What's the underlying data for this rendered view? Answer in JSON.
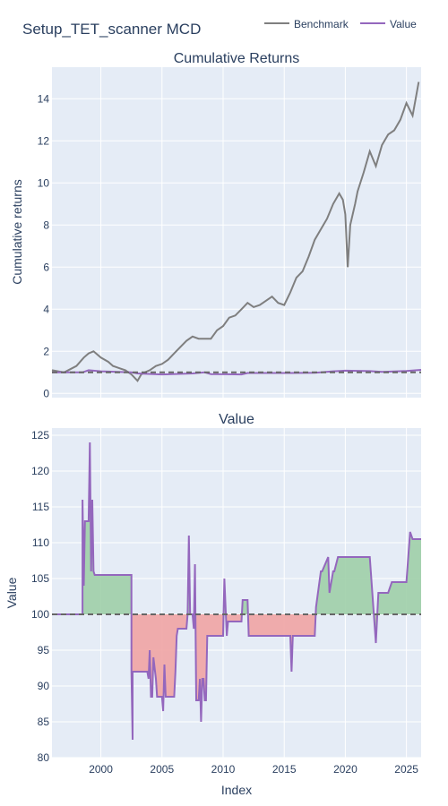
{
  "figure": {
    "title": "Setup_TET_scanner MCD",
    "legend": [
      {
        "name": "Benchmark",
        "color": "#7f7f7f"
      },
      {
        "name": "Value",
        "color": "#9467bd"
      }
    ],
    "colors": {
      "plot_bg": "#e5ecf6",
      "grid": "#ffffff",
      "text": "#2a3f5f",
      "fill_above": "#9ecfa8",
      "fill_below": "#f0a4a4"
    }
  },
  "chart_data": [
    {
      "type": "line",
      "title": "Cumulative Returns",
      "xlabel": "",
      "ylabel": "Cumulative returns",
      "xlim": [
        1996.0,
        2026.2
      ],
      "ylim": [
        -0.2,
        15.5
      ],
      "yticks": [
        0,
        2,
        4,
        6,
        8,
        10,
        12,
        14
      ],
      "grid": true,
      "reference_line": 1,
      "series": [
        {
          "name": "Benchmark",
          "color": "#7f7f7f",
          "x": [
            1996.0,
            1997.0,
            1998.0,
            1998.6,
            1999.0,
            1999.4,
            2000.0,
            2000.6,
            2001.0,
            2001.5,
            2002.0,
            2002.5,
            2003.0,
            2003.3,
            2003.6,
            2004.0,
            2004.5,
            2005.0,
            2005.5,
            2006.0,
            2006.5,
            2007.0,
            2007.5,
            2008.0,
            2008.5,
            2009.0,
            2009.5,
            2010.0,
            2010.5,
            2011.0,
            2011.5,
            2012.0,
            2012.5,
            2013.0,
            2013.5,
            2014.0,
            2014.5,
            2015.0,
            2015.5,
            2016.0,
            2016.5,
            2017.0,
            2017.5,
            2018.0,
            2018.5,
            2019.0,
            2019.5,
            2019.8,
            2020.0,
            2020.2,
            2020.4,
            2020.8,
            2021.0,
            2021.5,
            2022.0,
            2022.5,
            2023.0,
            2023.5,
            2024.0,
            2024.5,
            2025.0,
            2025.5,
            2026.0
          ],
          "values": [
            1.1,
            1.0,
            1.3,
            1.7,
            1.9,
            2.0,
            1.7,
            1.5,
            1.3,
            1.2,
            1.1,
            0.9,
            0.6,
            0.9,
            1.0,
            1.1,
            1.3,
            1.4,
            1.6,
            1.9,
            2.2,
            2.5,
            2.7,
            2.6,
            2.6,
            2.6,
            3.0,
            3.2,
            3.6,
            3.7,
            4.0,
            4.3,
            4.1,
            4.2,
            4.4,
            4.6,
            4.3,
            4.2,
            4.8,
            5.5,
            5.8,
            6.5,
            7.3,
            7.8,
            8.3,
            9.0,
            9.5,
            9.2,
            8.5,
            6.0,
            8.0,
            9.0,
            9.6,
            10.5,
            11.5,
            10.8,
            11.8,
            12.3,
            12.5,
            13.0,
            13.8,
            13.2,
            14.8
          ]
        },
        {
          "name": "Value",
          "color": "#9467bd",
          "x": [
            1996.0,
            1998.5,
            1999.0,
            2000.0,
            2002.5,
            2003.0,
            2005.0,
            2007.5,
            2008.5,
            2009.0,
            2011.5,
            2012.0,
            2015.5,
            2017.5,
            2018.0,
            2019.0,
            2020.0,
            2022.0,
            2023.0,
            2025.0,
            2026.2
          ],
          "values": [
            1.0,
            1.0,
            1.1,
            1.05,
            1.0,
            0.95,
            0.9,
            0.95,
            1.0,
            0.92,
            0.9,
            0.97,
            0.97,
            0.98,
            1.0,
            1.05,
            1.08,
            1.06,
            1.02,
            1.07,
            1.12
          ]
        }
      ]
    },
    {
      "type": "area",
      "title": "Value",
      "xlabel": "Index",
      "ylabel": "Value",
      "xlim": [
        1996.0,
        2026.2
      ],
      "ylim": [
        80,
        126
      ],
      "yticks": [
        80,
        85,
        90,
        95,
        100,
        105,
        110,
        115,
        120,
        125
      ],
      "xticks": [
        2000,
        2005,
        2010,
        2015,
        2020,
        2025
      ],
      "grid": true,
      "reference_line": 100,
      "series": [
        {
          "name": "Value",
          "color": "#9467bd",
          "x": [
            1996.0,
            1998.5,
            1998.5,
            1998.6,
            1998.7,
            1998.7,
            1999.0,
            1999.1,
            1999.2,
            1999.3,
            1999.4,
            1999.5,
            2002.5,
            2002.5,
            2002.6,
            2002.6,
            2003.8,
            2003.9,
            2004.0,
            2004.1,
            2004.2,
            2004.3,
            2004.5,
            2004.6,
            2005.0,
            2005.1,
            2005.2,
            2005.3,
            2006.0,
            2006.1,
            2006.2,
            2006.3,
            2007.0,
            2007.1,
            2007.2,
            2007.3,
            2007.5,
            2007.6,
            2007.7,
            2007.8,
            2008.0,
            2008.1,
            2008.2,
            2008.3,
            2008.4,
            2008.5,
            2008.6,
            2008.7,
            2009.0,
            2009.1,
            2010.0,
            2010.1,
            2010.3,
            2010.4,
            2011.5,
            2011.6,
            2012.0,
            2012.1,
            2015.5,
            2015.6,
            2015.7,
            2015.8,
            2016.0,
            2017.5,
            2017.6,
            2018.0,
            2018.1,
            2018.6,
            2018.7,
            2019.0,
            2019.1,
            2019.4,
            2019.5,
            2019.8,
            2020.0,
            2022.0,
            2022.5,
            2022.7,
            2023.0,
            2023.5,
            2023.8,
            2024.0,
            2025.0,
            2025.3,
            2025.5,
            2026.2
          ],
          "values": [
            100,
            100,
            116,
            104,
            113,
            113,
            113,
            124,
            106,
            116,
            106,
            105.5,
            105.5,
            92,
            82.5,
            92,
            92,
            91,
            95,
            88.5,
            88.5,
            94,
            91,
            88.5,
            88.5,
            86.5,
            93,
            88.5,
            88.5,
            92,
            97,
            98,
            98,
            100,
            111,
            100,
            100,
            98,
            107,
            88,
            88,
            91,
            85,
            91,
            91,
            88,
            88,
            97,
            97,
            97,
            97,
            105,
            97,
            99,
            99,
            102,
            102,
            97,
            97,
            92,
            97,
            97,
            97,
            97,
            101,
            106,
            106,
            108,
            103,
            106,
            106,
            108,
            108,
            108,
            108,
            108,
            96,
            103,
            103,
            103,
            104.5,
            104.5,
            104.5,
            111.5,
            110.5,
            110.5
          ]
        }
      ]
    }
  ]
}
